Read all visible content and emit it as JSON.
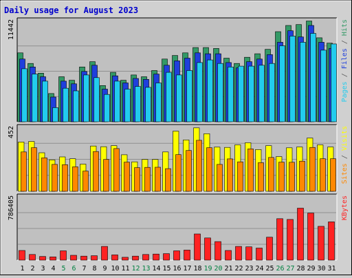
{
  "chart_data": {
    "type": "bar",
    "title": "Daily usage for August 2023",
    "categories": [
      "1",
      "2",
      "3",
      "4",
      "5",
      "6",
      "7",
      "8",
      "9",
      "10",
      "11",
      "12",
      "13",
      "14",
      "15",
      "16",
      "17",
      "18",
      "19",
      "20",
      "21",
      "22",
      "23",
      "24",
      "25",
      "26",
      "27",
      "28",
      "29",
      "30",
      "31"
    ],
    "weekend_days": [
      "5",
      "6",
      "12",
      "13",
      "19",
      "20",
      "26",
      "27"
    ],
    "panels": [
      {
        "id": "pages-files-hits",
        "ymax_label": "11442",
        "ymax": 11442,
        "series": [
          {
            "name": "Hits",
            "color": "#339966",
            "values": [
              7800,
              6600,
              5500,
              3200,
              5100,
              4700,
              6200,
              6800,
              4100,
              5600,
              4700,
              5300,
              5100,
              5800,
              7100,
              7500,
              7800,
              8400,
              8400,
              8300,
              7200,
              6600,
              7300,
              7700,
              8200,
              10200,
              10900,
              11000,
              11400,
              9500,
              8900
            ]
          },
          {
            "name": "Files",
            "color": "#1f3fdc",
            "values": [
              7100,
              6200,
              5100,
              2800,
              4600,
              4300,
              5700,
              6400,
              3700,
              5200,
              4400,
              4900,
              4800,
              5400,
              6400,
              6900,
              7200,
              7800,
              7700,
              7700,
              6700,
              6100,
              6800,
              7100,
              7600,
              9000,
              10300,
              9600,
              10900,
              9000,
              8300
            ]
          },
          {
            "name": "Pages",
            "color": "#22ccee",
            "values": [
              6000,
              5400,
              4600,
              1600,
              3800,
              3500,
              5300,
              5000,
              3100,
              4600,
              3700,
              4000,
              3900,
              4400,
              5600,
              5300,
              5800,
              6700,
              7000,
              6600,
              6200,
              6300,
              6300,
              6400,
              6600,
              8600,
              9700,
              9000,
              10000,
              8100,
              8800
            ]
          }
        ]
      },
      {
        "id": "visits-sites",
        "ymax_label": "452",
        "ymax": 452,
        "series": [
          {
            "name": "Visits",
            "color": "#ffff00",
            "values": [
              348,
              352,
              272,
              222,
              243,
              230,
              192,
              320,
              315,
              322,
              258,
              208,
              225,
              225,
              278,
              425,
              363,
              448,
              407,
              312,
              310,
              328,
              343,
              295,
              322,
              245,
              307,
              313,
              376,
              328,
              313
            ]
          },
          {
            "name": "Sites",
            "color": "#ff8800",
            "values": [
              278,
              308,
              236,
              190,
              188,
              173,
              143,
              281,
              225,
              302,
              206,
              167,
              169,
              170,
              160,
              259,
              288,
              360,
              308,
              190,
              229,
              208,
              300,
              202,
              239,
              206,
              205,
              213,
              310,
              230,
              230
            ]
          }
        ]
      },
      {
        "id": "kbytes",
        "ymax_label": "786405",
        "ymax": 786405,
        "series": [
          {
            "name": "KBytes",
            "color": "#ff2222",
            "values": [
              120000,
              70000,
              45000,
              40000,
              115000,
              60000,
              50000,
              55000,
              170000,
              65000,
              35000,
              50000,
              70000,
              75000,
              80000,
              115000,
              125000,
              325000,
              275000,
              230000,
              120000,
              170000,
              165000,
              150000,
              285000,
              515000,
              505000,
              645000,
              585000,
              420000,
              475000
            ]
          }
        ]
      }
    ],
    "axis_side_labels": [
      {
        "panel": "pages-files-hits",
        "parts": [
          {
            "text": "Pages",
            "color": "#22ccee"
          },
          {
            "text": " / ",
            "color": "#5a5a5a"
          },
          {
            "text": "Files",
            "color": "#1f3fdc"
          },
          {
            "text": " / ",
            "color": "#5a5a5a"
          },
          {
            "text": "Hits",
            "color": "#339966"
          }
        ]
      },
      {
        "panel": "visits-sites",
        "parts": [
          {
            "text": "Sites",
            "color": "#ff8800"
          },
          {
            "text": " / ",
            "color": "#5a5a5a"
          },
          {
            "text": "Visits",
            "color": "#ffff00"
          }
        ]
      },
      {
        "panel": "kbytes",
        "parts": [
          {
            "text": "KBytes",
            "color": "#ff2222"
          }
        ]
      }
    ],
    "grid": true,
    "colors": {
      "background": "#d0d0d0",
      "plot_background": "#c0c0c0",
      "title_color": "#0000cc",
      "weekend_label": "#008040",
      "weekday_label": "#000000",
      "gridline": "#909090"
    }
  }
}
